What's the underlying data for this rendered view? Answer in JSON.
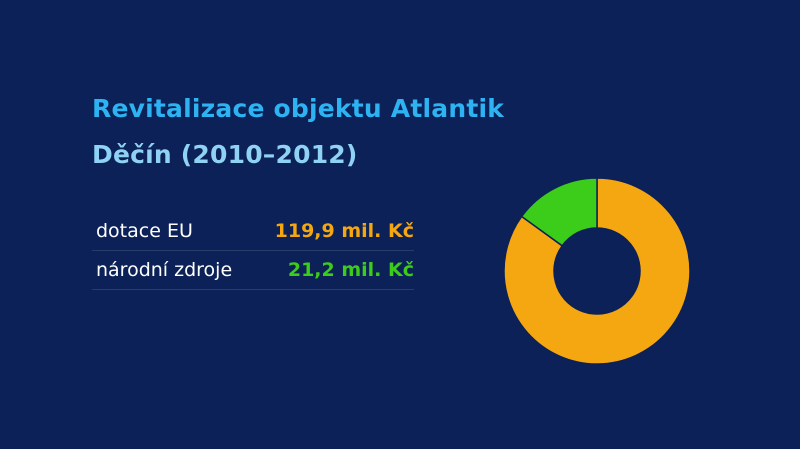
{
  "title": "Revitalizace objektu Atlantik",
  "subtitle": "Děčín (2010–2012)",
  "legend": [
    {
      "label": "dotace EU",
      "value_text": "119,9 mil. Kč",
      "color": "#f5a712"
    },
    {
      "label": "národní zdroje",
      "value_text": "21,2 mil. Kč",
      "color": "#3ccc1a"
    }
  ],
  "chart_data": {
    "type": "pie",
    "style": "donut",
    "categories": [
      "dotace EU",
      "národní zdroje"
    ],
    "values": [
      119.9,
      21.2
    ],
    "unit": "mil. Kč",
    "colors": [
      "#f5a712",
      "#3ccc1a"
    ],
    "title": "Revitalizace objektu Atlantik",
    "subtitle": "Děčín (2010–2012)"
  }
}
